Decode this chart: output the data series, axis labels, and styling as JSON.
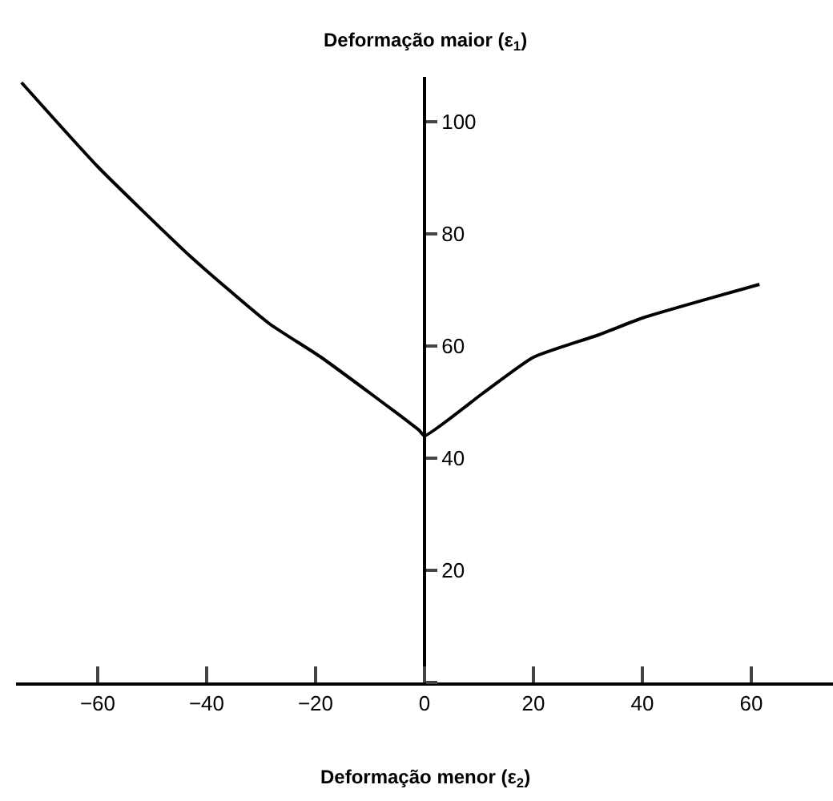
{
  "chart_data": {
    "type": "line",
    "xlabel": "Deformação menor (ε$_{2}$)",
    "ylabel": "Deformação maior (ε$_{1}$)",
    "series": [
      {
        "color": "#000000",
        "x": [
          -74,
          -60,
          -43,
          -28.5,
          -19,
          -1,
          0,
          10.6,
          20,
          32,
          40,
          52,
          61.5
        ],
        "values": [
          107,
          92,
          76,
          64,
          58,
          45,
          44,
          51.5,
          58,
          62,
          65,
          68.4,
          71
        ]
      }
    ],
    "xlim": [
      -75,
      75
    ],
    "ylim": [
      0,
      108
    ],
    "xticks": [
      -60,
      -40,
      -20,
      0,
      20,
      40,
      60
    ],
    "yticks": [
      {
        "value": 0,
        "label": null
      },
      20,
      40,
      60,
      80,
      100
    ],
    "legend": false,
    "marker": "none",
    "line_style": "solid"
  }
}
